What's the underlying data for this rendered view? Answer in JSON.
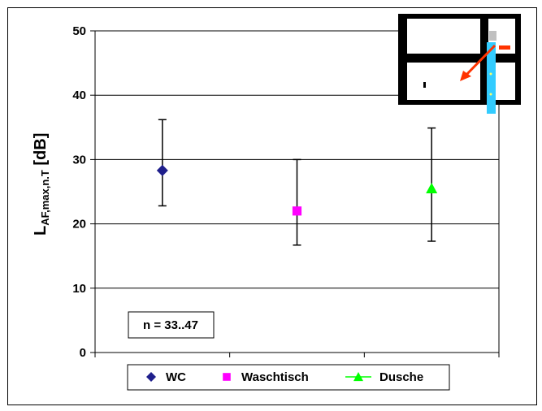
{
  "chart_data": {
    "type": "scatter",
    "ylabel": {
      "main": "L",
      "subscript": "AF,max,n.T",
      "suffix": " [dB]"
    },
    "ylim": [
      0,
      50
    ],
    "yticks": [
      "0",
      "10",
      "20",
      "30",
      "40",
      "50"
    ],
    "grid": true,
    "categories": [
      "WC",
      "Waschtisch",
      "Dusche"
    ],
    "series": [
      {
        "name": "WC",
        "x": 1,
        "mean": 28.3,
        "err_low": 22.8,
        "err_high": 36.2,
        "color": "#1F1F8C",
        "marker": "diamond"
      },
      {
        "name": "Waschtisch",
        "x": 2,
        "mean": 22.0,
        "err_low": 16.7,
        "err_high": 30.0,
        "color": "#FF00FF",
        "marker": "square"
      },
      {
        "name": "Dusche",
        "x": 3,
        "mean": 25.5,
        "err_low": 17.3,
        "err_high": 34.9,
        "color": "#00FF00",
        "marker": "triangle"
      }
    ],
    "annotation": "n = 33..47",
    "legend_position": "bottom"
  },
  "colors": {
    "pipe": "#33CCFF",
    "arrow": "#FF3300",
    "fitting": "#C0C0C0",
    "axis": "#000000"
  }
}
